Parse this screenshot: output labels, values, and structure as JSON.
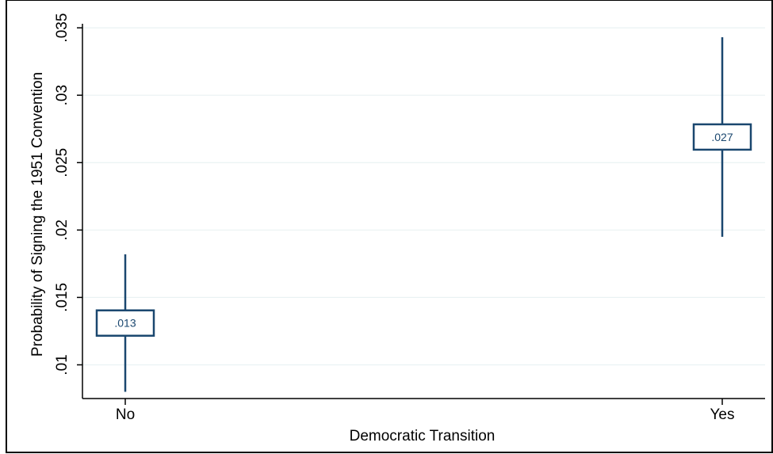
{
  "chart_data": {
    "type": "scatter",
    "categories": [
      "No",
      "Yes"
    ],
    "series": [
      {
        "points": [
          {
            "x": "No",
            "estimate": 0.0131,
            "lower": 0.008,
            "upper": 0.0182,
            "label": ".013"
          },
          {
            "x": "Yes",
            "estimate": 0.0269,
            "lower": 0.0195,
            "upper": 0.0343,
            "label": ".027"
          }
        ]
      }
    ],
    "xlabel": "Democratic Transition",
    "ylabel": "Probability of Signing the 1951 Convention",
    "yticks": [
      0.01,
      0.015,
      0.02,
      0.025,
      0.03,
      0.035
    ],
    "ytick_labels": [
      ".01",
      ".015",
      ".02",
      ".025",
      ".03",
      ".035"
    ],
    "ylim": [
      0.0075,
      0.0353
    ],
    "grid": true,
    "colors": {
      "marker": "#1a476f",
      "grid": "#eaf2f3",
      "axis": "#000000"
    }
  }
}
